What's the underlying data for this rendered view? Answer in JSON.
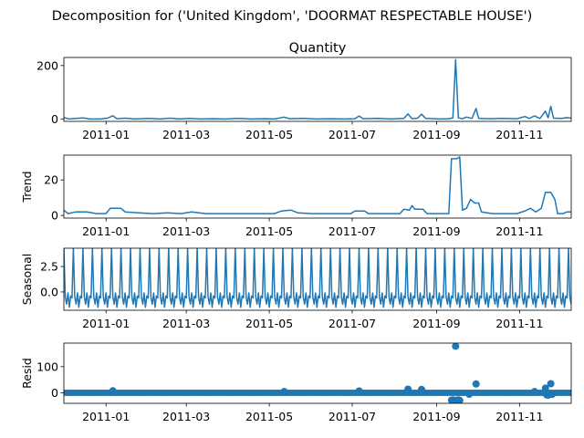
{
  "figure": {
    "suptitle": "Decomposition for ('United Kingdom', 'DOORMAT RESPECTABLE HOUSE')",
    "line_color": "#1f77b4"
  },
  "chart_data": [
    {
      "type": "line",
      "title": "Quantity",
      "ylabel": "",
      "ylim": [
        -8,
        230
      ],
      "yticks": [
        0,
        200
      ],
      "x_range": [
        "2010-12-01",
        "2011-12-09"
      ],
      "xticks": [
        "2011-01",
        "2011-03",
        "2011-05",
        "2011-07",
        "2011-09",
        "2011-11"
      ],
      "points": [
        [
          "2010-12-01",
          6
        ],
        [
          "2010-12-05",
          1
        ],
        [
          "2010-12-10",
          3
        ],
        [
          "2010-12-15",
          5
        ],
        [
          "2010-12-20",
          1
        ],
        [
          "2010-12-28",
          1
        ],
        [
          "2011-01-02",
          4
        ],
        [
          "2011-01-06",
          13
        ],
        [
          "2011-01-09",
          2
        ],
        [
          "2011-01-15",
          4
        ],
        [
          "2011-01-22",
          1
        ],
        [
          "2011-02-01",
          3
        ],
        [
          "2011-02-10",
          1
        ],
        [
          "2011-02-17",
          4
        ],
        [
          "2011-02-24",
          1
        ],
        [
          "2011-03-03",
          3
        ],
        [
          "2011-03-12",
          1
        ],
        [
          "2011-03-20",
          2
        ],
        [
          "2011-03-30",
          1
        ],
        [
          "2011-04-08",
          3
        ],
        [
          "2011-04-18",
          1
        ],
        [
          "2011-04-28",
          2
        ],
        [
          "2011-05-05",
          1
        ],
        [
          "2011-05-12",
          8
        ],
        [
          "2011-05-16",
          2
        ],
        [
          "2011-05-25",
          3
        ],
        [
          "2011-06-05",
          1
        ],
        [
          "2011-06-15",
          2
        ],
        [
          "2011-06-25",
          1
        ],
        [
          "2011-07-03",
          2
        ],
        [
          "2011-07-06",
          12
        ],
        [
          "2011-07-09",
          2
        ],
        [
          "2011-07-20",
          3
        ],
        [
          "2011-07-30",
          1
        ],
        [
          "2011-08-08",
          3
        ],
        [
          "2011-08-11",
          20
        ],
        [
          "2011-08-14",
          2
        ],
        [
          "2011-08-18",
          4
        ],
        [
          "2011-08-21",
          19
        ],
        [
          "2011-08-24",
          3
        ],
        [
          "2011-09-03",
          1
        ],
        [
          "2011-09-10",
          2
        ],
        [
          "2011-09-13",
          5
        ],
        [
          "2011-09-15",
          222
        ],
        [
          "2011-09-17",
          5
        ],
        [
          "2011-09-20",
          2
        ],
        [
          "2011-09-23",
          8
        ],
        [
          "2011-09-27",
          3
        ],
        [
          "2011-09-30",
          40
        ],
        [
          "2011-10-02",
          3
        ],
        [
          "2011-10-10",
          2
        ],
        [
          "2011-10-20",
          3
        ],
        [
          "2011-10-30",
          2
        ],
        [
          "2011-11-05",
          10
        ],
        [
          "2011-11-08",
          3
        ],
        [
          "2011-11-12",
          12
        ],
        [
          "2011-11-16",
          3
        ],
        [
          "2011-11-20",
          30
        ],
        [
          "2011-11-22",
          6
        ],
        [
          "2011-11-24",
          48
        ],
        [
          "2011-11-26",
          4
        ],
        [
          "2011-12-02",
          3
        ],
        [
          "2011-12-06",
          6
        ],
        [
          "2011-12-09",
          4
        ]
      ]
    },
    {
      "type": "line",
      "title": "",
      "ylabel": "Trend",
      "ylim": [
        -1.5,
        34
      ],
      "yticks": [
        0,
        20
      ],
      "x_range": [
        "2010-12-01",
        "2011-12-09"
      ],
      "xticks": [
        "2011-01",
        "2011-03",
        "2011-05",
        "2011-07",
        "2011-09",
        "2011-11"
      ],
      "points": [
        [
          "2010-12-01",
          3
        ],
        [
          "2010-12-04",
          1
        ],
        [
          "2010-12-10",
          2
        ],
        [
          "2010-12-18",
          2
        ],
        [
          "2010-12-25",
          1
        ],
        [
          "2011-01-01",
          1
        ],
        [
          "2011-01-04",
          4
        ],
        [
          "2011-01-12",
          4
        ],
        [
          "2011-01-15",
          2
        ],
        [
          "2011-01-25",
          1.5
        ],
        [
          "2011-02-05",
          1
        ],
        [
          "2011-02-15",
          1.5
        ],
        [
          "2011-02-25",
          1
        ],
        [
          "2011-03-05",
          2
        ],
        [
          "2011-03-15",
          1
        ],
        [
          "2011-03-25",
          1
        ],
        [
          "2011-04-05",
          1
        ],
        [
          "2011-04-15",
          1
        ],
        [
          "2011-04-25",
          1
        ],
        [
          "2011-05-05",
          1
        ],
        [
          "2011-05-10",
          2.5
        ],
        [
          "2011-05-17",
          3
        ],
        [
          "2011-05-22",
          1.5
        ],
        [
          "2011-06-01",
          1
        ],
        [
          "2011-06-15",
          1
        ],
        [
          "2011-06-30",
          1
        ],
        [
          "2011-07-03",
          2.5
        ],
        [
          "2011-07-10",
          2.5
        ],
        [
          "2011-07-13",
          1
        ],
        [
          "2011-07-25",
          1
        ],
        [
          "2011-08-05",
          1
        ],
        [
          "2011-08-08",
          3.5
        ],
        [
          "2011-08-12",
          3
        ],
        [
          "2011-08-14",
          5.5
        ],
        [
          "2011-08-16",
          3.5
        ],
        [
          "2011-08-22",
          3.5
        ],
        [
          "2011-08-25",
          1
        ],
        [
          "2011-09-05",
          1
        ],
        [
          "2011-09-10",
          1
        ],
        [
          "2011-09-12",
          32
        ],
        [
          "2011-09-16",
          32
        ],
        [
          "2011-09-18",
          33
        ],
        [
          "2011-09-20",
          3
        ],
        [
          "2011-09-23",
          4
        ],
        [
          "2011-09-26",
          9
        ],
        [
          "2011-09-29",
          7
        ],
        [
          "2011-10-02",
          7
        ],
        [
          "2011-10-04",
          2
        ],
        [
          "2011-10-12",
          1
        ],
        [
          "2011-10-22",
          1
        ],
        [
          "2011-10-30",
          1
        ],
        [
          "2011-11-05",
          2.5
        ],
        [
          "2011-11-09",
          4
        ],
        [
          "2011-11-13",
          2
        ],
        [
          "2011-11-17",
          4
        ],
        [
          "2011-11-20",
          13
        ],
        [
          "2011-11-24",
          13
        ],
        [
          "2011-11-27",
          9
        ],
        [
          "2011-11-29",
          1
        ],
        [
          "2011-12-03",
          1
        ],
        [
          "2011-12-06",
          2
        ],
        [
          "2011-12-09",
          2
        ]
      ]
    },
    {
      "type": "line",
      "title": "",
      "ylabel": "Seasonal",
      "ylim": [
        -1.8,
        4.3
      ],
      "yticks": [
        0.0,
        2.5
      ],
      "yticklabels": [
        "0.0",
        "2.5"
      ],
      "x_range": [
        "2010-12-01",
        "2011-12-09"
      ],
      "xticks": [
        "2011-01",
        "2011-03",
        "2011-05",
        "2011-07",
        "2011-09",
        "2011-11"
      ],
      "period_days": 7,
      "pattern": [
        4.3,
        -0.5,
        -1.2,
        -0.1,
        -1.5,
        -0.4,
        -0.6
      ]
    },
    {
      "type": "scatter",
      "title": "",
      "ylabel": "Resid",
      "ylim": [
        -40,
        190
      ],
      "yticks": [
        0,
        100
      ],
      "x_range": [
        "2010-12-01",
        "2011-12-09"
      ],
      "xticks": [
        "2011-01",
        "2011-03",
        "2011-05",
        "2011-07",
        "2011-09",
        "2011-11"
      ],
      "baseline": 0,
      "points": [
        [
          "2011-01-06",
          8
        ],
        [
          "2011-05-12",
          5
        ],
        [
          "2011-07-06",
          7
        ],
        [
          "2011-08-11",
          14
        ],
        [
          "2011-08-21",
          13
        ],
        [
          "2011-09-12",
          -28
        ],
        [
          "2011-09-13",
          -27
        ],
        [
          "2011-09-14",
          -30
        ],
        [
          "2011-09-15",
          178
        ],
        [
          "2011-09-16",
          -28
        ],
        [
          "2011-09-17",
          -27
        ],
        [
          "2011-09-18",
          -29
        ],
        [
          "2011-09-30",
          34
        ],
        [
          "2011-09-25",
          -5
        ],
        [
          "2011-11-20",
          18
        ],
        [
          "2011-11-24",
          35
        ],
        [
          "2011-11-21",
          -8
        ],
        [
          "2011-11-22",
          -9
        ],
        [
          "2011-11-25",
          -6
        ],
        [
          "2011-11-12",
          5
        ]
      ]
    }
  ]
}
